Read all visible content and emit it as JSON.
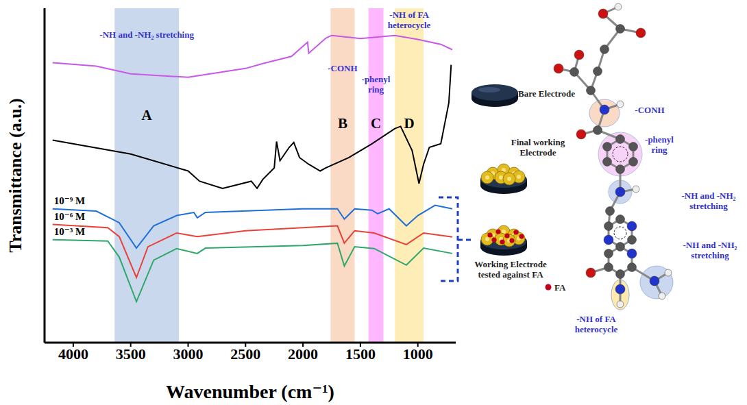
{
  "chart_data": {
    "type": "line",
    "x_label": "Wavenumber (cm⁻¹)",
    "y_label": "Transmittance (a.u.)",
    "xlim": [
      4250,
      670
    ],
    "xticks": [
      4000,
      3500,
      3000,
      2500,
      2000,
      1500,
      1000
    ],
    "ylim": [
      0,
      7.5
    ],
    "yticks": [
      0,
      1,
      2,
      3,
      4,
      5,
      6,
      7
    ],
    "tick_labels": "x",
    "grid": false,
    "series": [
      {
        "color": "#c858e8",
        "x": [
          4180,
          3800,
          3500,
          3000,
          2500,
          2350,
          2100,
          1960,
          1950,
          1800,
          1750,
          1500,
          1200,
          1000,
          800,
          700
        ],
        "values": [
          6.28,
          6.2,
          6.03,
          5.95,
          6.15,
          6.26,
          6.42,
          6.74,
          6.49,
          6.83,
          6.89,
          6.82,
          6.89,
          6.8,
          6.69,
          6.57
        ]
      },
      {
        "color": "#000000",
        "x": [
          4180,
          3500,
          3000,
          2900,
          2700,
          2450,
          2400,
          2350,
          2250,
          2230,
          2200,
          2120,
          2080,
          2030,
          1950,
          1850,
          1800,
          1600,
          1400,
          1200,
          1150,
          1050,
          990,
          950,
          900,
          800,
          730,
          710
        ],
        "values": [
          4.54,
          4.23,
          3.85,
          3.62,
          3.46,
          3.62,
          3.46,
          3.66,
          3.92,
          4.51,
          4.08,
          4.38,
          4.49,
          4.15,
          4.0,
          3.85,
          3.92,
          4.15,
          4.46,
          4.8,
          4.85,
          4.31,
          3.57,
          4.0,
          4.38,
          4.46,
          5.38,
          6.23
        ]
      },
      {
        "name": "10⁻⁹ M",
        "color": "#1f6fd8",
        "x": [
          4180,
          3800,
          3600,
          3450,
          3300,
          3100,
          2950,
          2920,
          2850,
          2000,
          1700,
          1640,
          1550,
          1400,
          1350,
          1250,
          1100,
          1000,
          850,
          700
        ],
        "values": [
          3.0,
          2.95,
          2.69,
          2.12,
          2.62,
          2.85,
          2.92,
          2.8,
          2.92,
          3.0,
          3.0,
          2.77,
          3.0,
          2.97,
          2.89,
          3.0,
          2.62,
          2.85,
          3.08,
          3.0
        ]
      },
      {
        "name": "10⁻⁶ M",
        "color": "#e8413a",
        "x": [
          4180,
          3700,
          3600,
          3450,
          3350,
          3100,
          2920,
          2500,
          1700,
          1640,
          1550,
          1380,
          1100,
          950,
          700
        ],
        "values": [
          2.65,
          2.58,
          2.38,
          1.46,
          2.15,
          2.46,
          2.38,
          2.51,
          2.62,
          2.23,
          2.51,
          2.46,
          2.2,
          2.46,
          2.37
        ]
      },
      {
        "name": "10⁻³ M",
        "color": "#2ea86a",
        "x": [
          4180,
          3700,
          3600,
          3450,
          3300,
          3100,
          2920,
          2850,
          2000,
          1700,
          1640,
          1550,
          1380,
          1100,
          950,
          700
        ],
        "values": [
          2.31,
          2.28,
          1.92,
          0.92,
          1.85,
          2.11,
          2.0,
          2.12,
          2.18,
          2.23,
          1.72,
          2.15,
          2.11,
          1.74,
          2.12,
          2.0
        ]
      }
    ],
    "bands": [
      {
        "x1": 3640,
        "x2": 3080,
        "letter": "A",
        "label": "-NH and -NH₂ stretching",
        "color": "#b4c7e7"
      },
      {
        "x1": 1760,
        "x2": 1550,
        "letter": "B",
        "label": "-CONH",
        "color": "#f8cbad"
      },
      {
        "x1": 1430,
        "x2": 1300,
        "letter": "C",
        "label": "-phenyl ring",
        "color": "#ff99ff"
      },
      {
        "x1": 1200,
        "x2": 950,
        "letter": "D",
        "label": "-NH of FA heterocycle",
        "color": "#ffe699"
      }
    ],
    "electrodes": [
      "Bare Electrode",
      "Final working Electrode",
      "Working Electrode tested against FA"
    ],
    "marker_legend": "FA",
    "molecule_labels": [
      "-CONH",
      "-phenyl ring",
      "-NH and -NH₂ stretching",
      "-NH and -NH₂ stretching",
      "-NH of FA heterocycle"
    ]
  }
}
